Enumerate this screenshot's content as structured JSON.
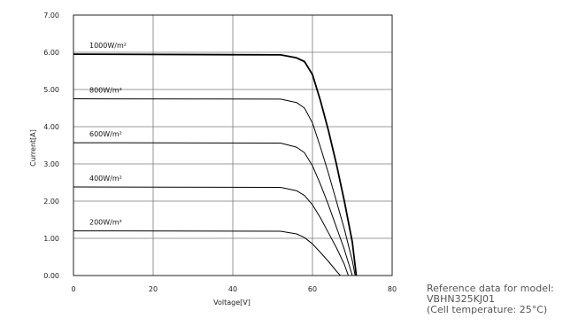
{
  "chart_data": {
    "type": "line",
    "title": "",
    "xlabel": "Voltage[V]",
    "ylabel": "Current[A]",
    "xlim": [
      0,
      80
    ],
    "ylim": [
      0,
      7
    ],
    "xticks": [
      "0",
      "20",
      "40",
      "60",
      "80"
    ],
    "yticks": [
      "0.00",
      "1.00",
      "2.00",
      "3.00",
      "4.00",
      "5.00",
      "6.00",
      "7.00"
    ],
    "grid": true,
    "series": [
      {
        "name": "1000W/m²",
        "x": [
          0,
          52,
          56,
          58,
          60,
          62,
          64,
          66,
          68,
          70,
          71
        ],
        "y": [
          5.95,
          5.93,
          5.85,
          5.75,
          5.4,
          4.7,
          3.9,
          3.0,
          2.0,
          0.9,
          0.0
        ]
      },
      {
        "name": "800W/m²",
        "x": [
          0,
          52,
          56,
          58,
          60,
          62,
          64,
          66,
          68,
          70,
          70.7
        ],
        "y": [
          4.75,
          4.74,
          4.65,
          4.5,
          4.1,
          3.45,
          2.75,
          2.0,
          1.25,
          0.4,
          0.0
        ]
      },
      {
        "name": "600W/m²",
        "x": [
          0,
          52,
          56,
          58,
          60,
          62,
          64,
          66,
          68,
          70
        ],
        "y": [
          3.57,
          3.56,
          3.45,
          3.3,
          2.95,
          2.45,
          1.9,
          1.3,
          0.7,
          0.0
        ]
      },
      {
        "name": "400W/m²",
        "x": [
          0,
          52,
          56,
          58,
          60,
          62,
          64,
          66,
          68,
          69
        ],
        "y": [
          2.38,
          2.37,
          2.28,
          2.15,
          1.9,
          1.55,
          1.15,
          0.75,
          0.3,
          0.0
        ]
      },
      {
        "name": "200W/m²",
        "x": [
          0,
          52,
          56,
          58,
          60,
          62,
          64,
          66,
          67
        ],
        "y": [
          1.2,
          1.19,
          1.12,
          1.02,
          0.85,
          0.62,
          0.38,
          0.12,
          0.0
        ]
      }
    ],
    "line_colors": [
      "#000000"
    ],
    "grid_color": "#7a7a7a"
  },
  "note": {
    "lines": [
      "Reference data for model:",
      "VBHN325KJ01",
      "(Cell temperature: 25°C)"
    ],
    "color": "#555555"
  }
}
